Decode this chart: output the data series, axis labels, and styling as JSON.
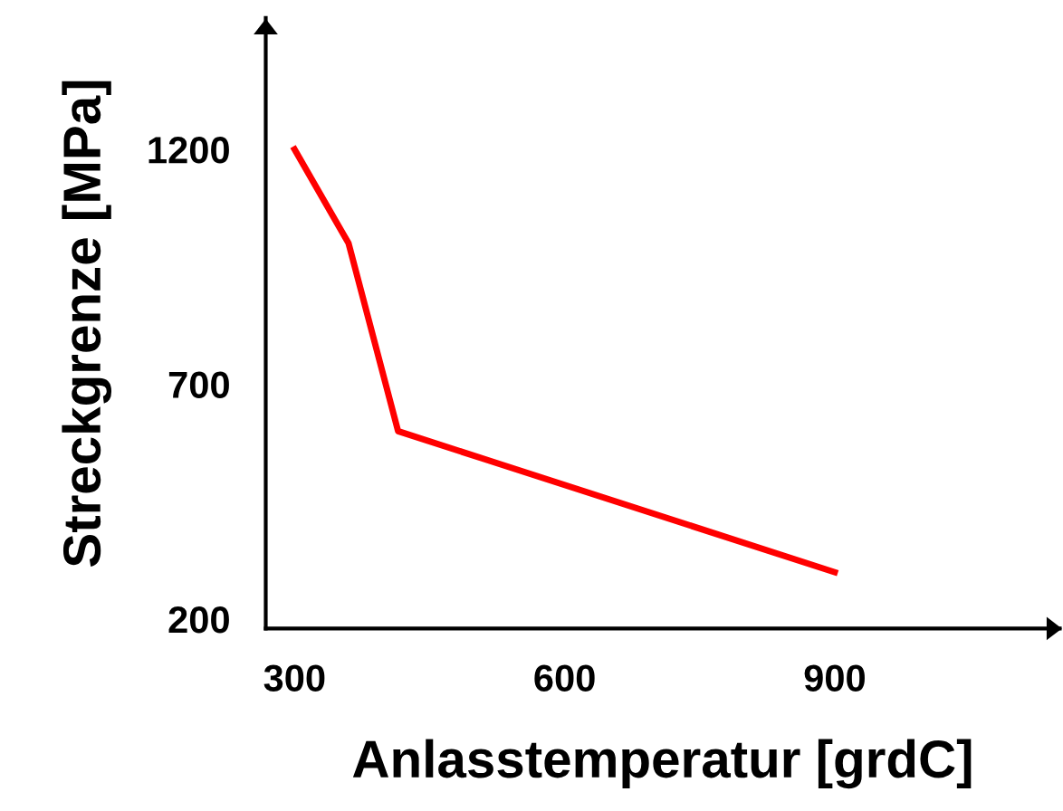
{
  "chart_data": {
    "type": "line",
    "xlabel": "Anlasstemperatur [grdC]",
    "ylabel": "Streckgrenze [MPa]",
    "x": [
      300,
      360,
      415,
      900
    ],
    "series": [
      {
        "color": "#ff0000",
        "values": [
          1200,
          1000,
          600,
          300
        ]
      }
    ],
    "xlim": [
      268,
      1150
    ],
    "ylim": [
      180,
      1480
    ],
    "xticks": [
      300,
      600,
      900
    ],
    "yticks": [
      200,
      700,
      1200
    ],
    "grid": false,
    "legend": false,
    "marker": "none",
    "line_style": "solid"
  }
}
